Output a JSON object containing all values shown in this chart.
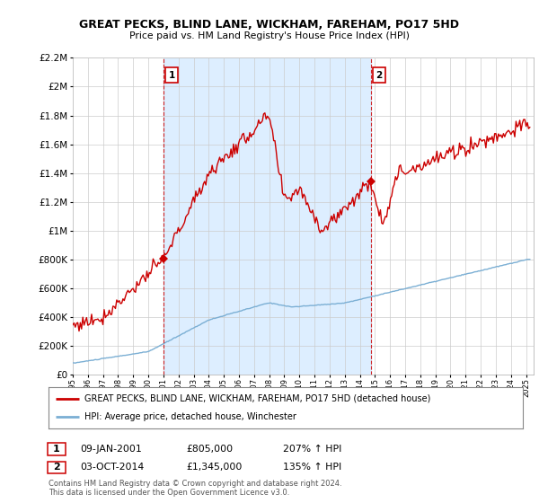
{
  "title": "GREAT PECKS, BLIND LANE, WICKHAM, FAREHAM, PO17 5HD",
  "subtitle": "Price paid vs. HM Land Registry's House Price Index (HPI)",
  "ylim": [
    0,
    2200000
  ],
  "yticks": [
    0,
    200000,
    400000,
    600000,
    800000,
    1000000,
    1200000,
    1400000,
    1600000,
    1800000,
    2000000,
    2200000
  ],
  "ytick_labels": [
    "£0",
    "£200K",
    "£400K",
    "£600K",
    "£800K",
    "£1M",
    "£1.2M",
    "£1.4M",
    "£1.6M",
    "£1.8M",
    "£2M",
    "£2.2M"
  ],
  "xlim_start": 1995.0,
  "xlim_end": 2025.5,
  "sale1_x": 2001.03,
  "sale1_y": 805000,
  "sale2_x": 2014.75,
  "sale2_y": 1345000,
  "red_color": "#cc0000",
  "blue_color": "#7bafd4",
  "shade_color": "#ddeeff",
  "dashed_color": "#cc0000",
  "background_color": "#ffffff",
  "grid_color": "#cccccc",
  "legend_line1": "GREAT PECKS, BLIND LANE, WICKHAM, FAREHAM, PO17 5HD (detached house)",
  "legend_line2": "HPI: Average price, detached house, Winchester",
  "footnote1": "Contains HM Land Registry data © Crown copyright and database right 2024.",
  "footnote2": "This data is licensed under the Open Government Licence v3.0.",
  "table_row1": [
    "1",
    "09-JAN-2001",
    "£805,000",
    "207% ↑ HPI"
  ],
  "table_row2": [
    "2",
    "03-OCT-2014",
    "£1,345,000",
    "135% ↑ HPI"
  ],
  "hpi_seed": 10,
  "prop_seed": 77
}
